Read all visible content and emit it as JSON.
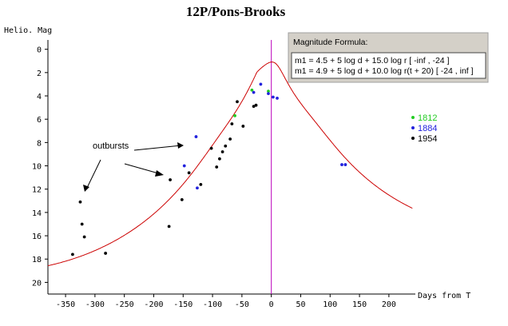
{
  "chart_data": {
    "type": "scatter",
    "title": "12P/Pons-Brooks",
    "ylabel": "Helio. Mag",
    "xlabel": "Days from T",
    "xlim": [
      -380,
      245
    ],
    "ylim": [
      21.0,
      -0.8
    ],
    "y_inverted": true,
    "xticks": [
      -350,
      -300,
      -250,
      -200,
      -150,
      -100,
      -50,
      0,
      50,
      100,
      150,
      200
    ],
    "xtick_labels": [
      "-350",
      "-300",
      "-250",
      "-200",
      "-150",
      "-100",
      "-50",
      "0",
      "50",
      "100",
      "150",
      "200"
    ],
    "yticks": [
      0,
      2,
      4,
      6,
      8,
      10,
      12,
      14,
      16,
      18,
      20
    ],
    "ytick_labels": [
      "0",
      "2",
      "4",
      "6",
      "8",
      "10",
      "12",
      "14",
      "16",
      "18",
      "20"
    ],
    "perihelion_line_x": 0,
    "series": [
      {
        "name": "1812",
        "color": "#22cc22",
        "points": [
          [
            -62,
            5.7
          ],
          [
            -33,
            3.5
          ],
          [
            -5,
            3.6
          ]
        ]
      },
      {
        "name": "1884",
        "color": "#2222dd",
        "points": [
          [
            -128,
            7.5
          ],
          [
            -148,
            10.0
          ],
          [
            -126,
            11.9
          ],
          [
            -30,
            3.7
          ],
          [
            -18,
            3.0
          ],
          [
            -5,
            3.8
          ],
          [
            3,
            4.1
          ],
          [
            10,
            4.2
          ],
          [
            120,
            9.9
          ],
          [
            126,
            9.9
          ]
        ]
      },
      {
        "name": "1954",
        "color": "#000000",
        "points": [
          [
            -338,
            17.6
          ],
          [
            -325,
            13.1
          ],
          [
            -322,
            15.0
          ],
          [
            -318,
            16.1
          ],
          [
            -282,
            17.5
          ],
          [
            -174,
            15.2
          ],
          [
            -172,
            11.2
          ],
          [
            -152,
            12.9
          ],
          [
            -140,
            10.6
          ],
          [
            -120,
            11.6
          ],
          [
            -102,
            8.5
          ],
          [
            -93,
            10.1
          ],
          [
            -88,
            9.4
          ],
          [
            -83,
            8.8
          ],
          [
            -78,
            8.3
          ],
          [
            -70,
            7.7
          ],
          [
            -67,
            6.4
          ],
          [
            -58,
            4.5
          ],
          [
            -48,
            6.6
          ],
          [
            -30,
            4.9
          ],
          [
            -26,
            4.8
          ]
        ]
      }
    ],
    "curves": [
      {
        "name": "m1 = 4.5 + 5 log d + 15.0 log r",
        "color": "#cc0000",
        "x_range": [
          -380,
          -24
        ]
      },
      {
        "name": "m1 = 4.9 + 5 log d + 10.0 log r(t + 20)",
        "color": "#cc0000",
        "x_range": [
          -24,
          240
        ]
      }
    ]
  },
  "legend": [
    {
      "label": "1812",
      "color": "#22cc22"
    },
    {
      "label": "1884",
      "color": "#2222dd"
    },
    {
      "label": "1954",
      "color": "#000000"
    }
  ],
  "formula_box": {
    "title": "Magnitude Formula:",
    "line1": "m1 = 4.5 + 5 log d + 15.0 log r   [ -inf ,  -24 ]",
    "line2": "m1 = 4.9 + 5 log d + 10.0 log r(t + 20)   [ -24 ,  inf ]"
  },
  "annotation": {
    "text": "outbursts"
  }
}
